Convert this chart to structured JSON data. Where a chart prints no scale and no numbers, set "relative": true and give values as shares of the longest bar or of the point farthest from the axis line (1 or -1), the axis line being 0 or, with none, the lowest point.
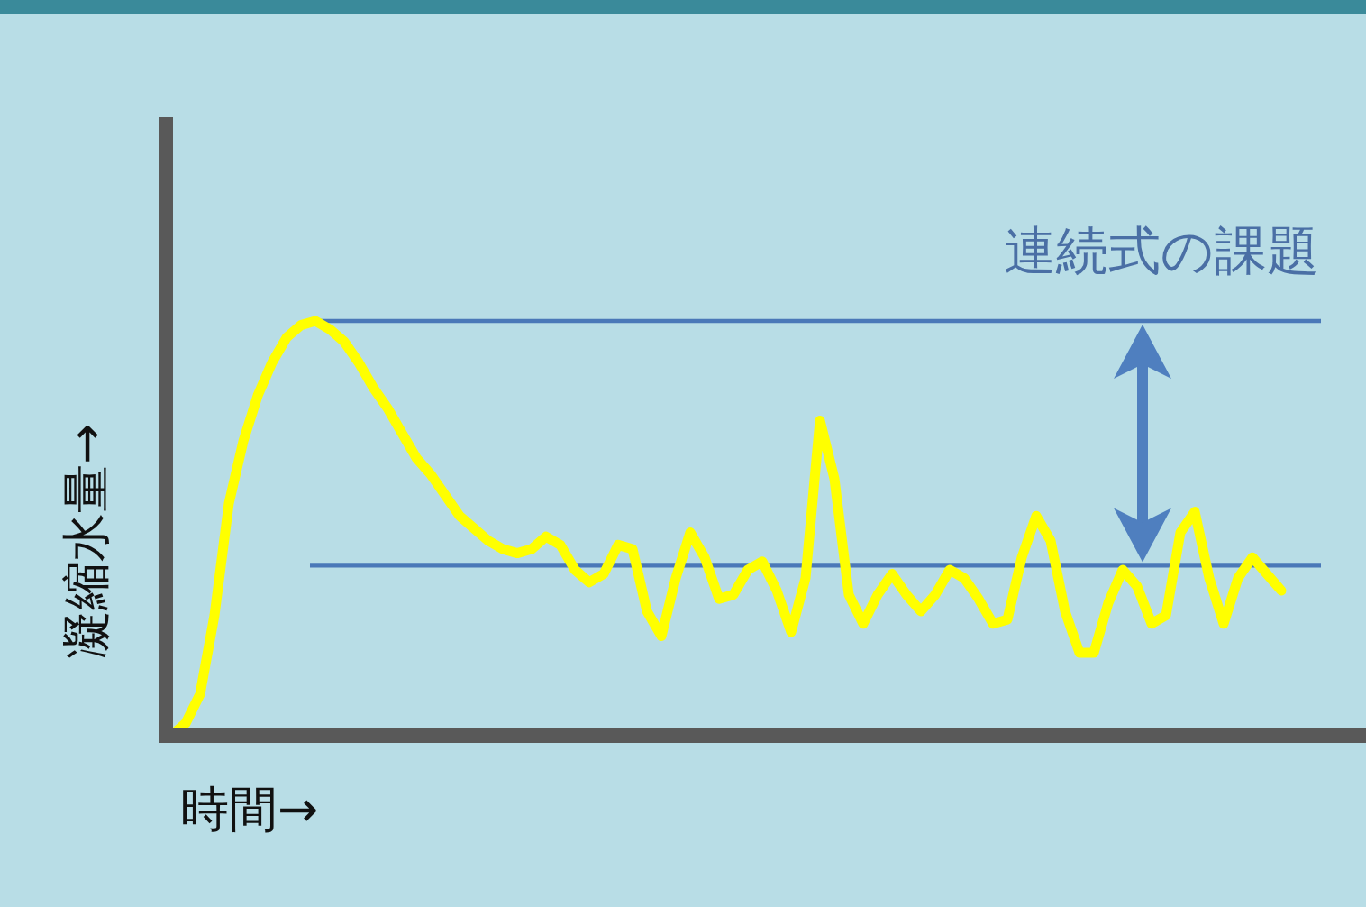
{
  "chart_data": {
    "type": "line",
    "relative": true,
    "ylabel": "凝縮水量→",
    "xlabel": "時間→",
    "marker": "none",
    "line_style": "solid",
    "categories": [
      null,
      null,
      null,
      null,
      null,
      null,
      null,
      null,
      null,
      null,
      null,
      null,
      null,
      null,
      null,
      null,
      null,
      null,
      null,
      null,
      null,
      null,
      null,
      null,
      null,
      null,
      null,
      null,
      null,
      null,
      null,
      null,
      null,
      null,
      null,
      null,
      null,
      null,
      null,
      null,
      null,
      null,
      null,
      null,
      null,
      null,
      null,
      null,
      null,
      null,
      null,
      null,
      null,
      null,
      null,
      null,
      null,
      null,
      null,
      null,
      null,
      null,
      null,
      null,
      null,
      null,
      null,
      null,
      null,
      null,
      null,
      null,
      null,
      null,
      null,
      null,
      null,
      null
    ],
    "series": [
      {
        "color": "#ffff00",
        "values": [
          0,
          0.03,
          0.1,
          0.29,
          0.56,
          0.71,
          0.82,
          0.9,
          0.96,
          0.99,
          1.0,
          0.98,
          0.95,
          0.9,
          0.84,
          0.79,
          0.73,
          0.67,
          0.63,
          0.58,
          0.53,
          0.5,
          0.47,
          0.45,
          0.44,
          0.45,
          0.48,
          0.46,
          0.4,
          0.37,
          0.39,
          0.46,
          0.45,
          0.3,
          0.24,
          0.38,
          0.49,
          0.43,
          0.33,
          0.34,
          0.4,
          0.42,
          0.35,
          0.25,
          0.38,
          0.76,
          0.62,
          0.34,
          0.27,
          0.34,
          0.39,
          0.34,
          0.3,
          0.34,
          0.4,
          0.38,
          0.33,
          0.27,
          0.28,
          0.43,
          0.53,
          0.47,
          0.3,
          0.2,
          0.2,
          0.32,
          0.4,
          0.36,
          0.27,
          0.29,
          0.49,
          0.54,
          0.38,
          0.27,
          0.38,
          0.43,
          0.39,
          0.35
        ]
      }
    ],
    "ref_lines": [
      {
        "axis": "y",
        "value": 1,
        "color": "#4a78b8"
      },
      {
        "axis": "y",
        "value": 0.41,
        "color": "#4a78b8"
      }
    ],
    "annotations": [
      "連続式の課題"
    ]
  }
}
